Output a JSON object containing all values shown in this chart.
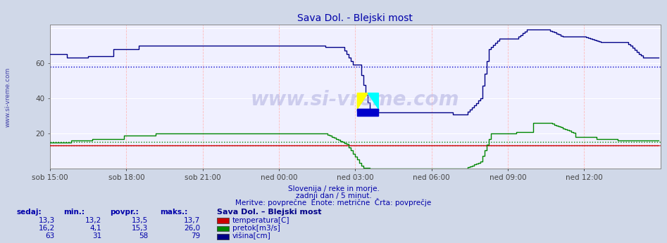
{
  "title": "Sava Dol. - Blejski most",
  "subtitle1": "Slovenija / reke in morje.",
  "subtitle2": "zadnji dan / 5 minut.",
  "subtitle3": "Meritve: povprečne  Enote: metrične  Črta: povprečje",
  "watermark": "www.si-vreme.com",
  "xlabel_ticks": [
    "sob 15:00",
    "sob 18:00",
    "sob 21:00",
    "ned 00:00",
    "ned 03:00",
    "ned 06:00",
    "ned 09:00",
    "ned 12:00"
  ],
  "ylabel_ticks": [
    20,
    40,
    60
  ],
  "ylim": [
    0,
    82
  ],
  "xlim": [
    0,
    288
  ],
  "bg_color": "#d0d8e8",
  "plot_bg_color": "#f0f0ff",
  "grid_color_white": "#ffffff",
  "grid_color_pink": "#ffbbbb",
  "avg_color_red": "#cc0000",
  "avg_color_green": "#008800",
  "avg_color_blue": "#0000cc",
  "temp_color": "#cc0000",
  "flow_color": "#008800",
  "height_color": "#000088",
  "spine_color": "#888888",
  "tick_color": "#444444",
  "text_color": "#0000aa",
  "legend_header": "Sava Dol. – Blejski most",
  "table_headers": [
    "sedaj:",
    "min.:",
    "povpr.:",
    "maks.:"
  ],
  "table_data": [
    [
      "13,3",
      "13,2",
      "13,5",
      "13,7",
      "temperatura[C]"
    ],
    [
      "16,2",
      "4,1",
      "15,3",
      "26,0",
      "pretok[m3/s]"
    ],
    [
      "63",
      "31",
      "58",
      "79",
      "višina[cm]"
    ]
  ],
  "n_points": 288,
  "temp_avg": 13.5,
  "flow_avg": 15.3,
  "height_avg": 58,
  "x_tick_positions": [
    0,
    36,
    72,
    108,
    144,
    180,
    216,
    252
  ]
}
